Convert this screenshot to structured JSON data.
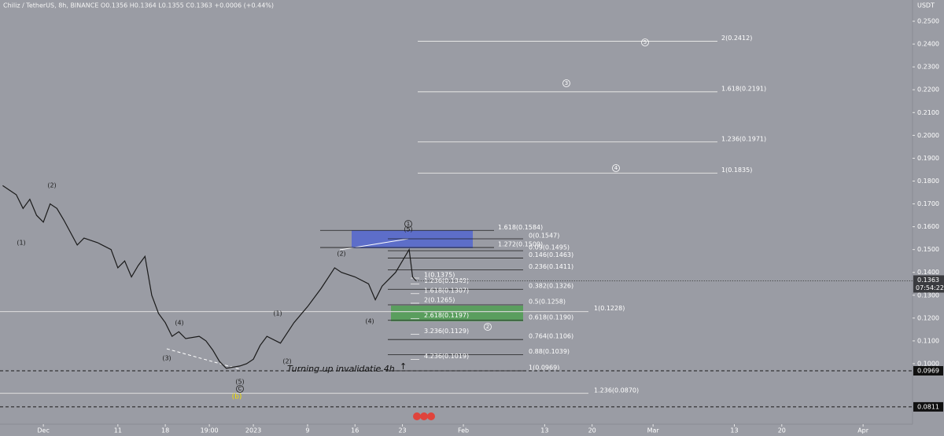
{
  "chart_data": {
    "type": "line",
    "header": "Chiliz / TetherUS, 8h, BINANCE  O0.1356  H0.1364  L0.1355  C0.1363  +0.0006 (+0.44%)",
    "y_unit": "USDT",
    "color": "#1a1a1a",
    "series": [
      {
        "name": "CHZUSDT",
        "x": [
          -6,
          -5,
          -4,
          -3,
          -2,
          -1,
          0,
          1,
          2,
          3,
          5,
          6,
          8,
          10,
          11,
          12,
          13,
          14,
          15,
          16,
          17,
          18,
          19,
          20,
          21,
          23,
          24,
          25,
          26,
          27,
          29,
          30,
          31,
          32,
          33,
          35,
          37,
          39,
          41,
          43,
          44,
          46,
          48,
          49,
          50,
          52,
          53,
          54,
          54.5,
          55
        ],
        "values": [
          0.178,
          0.176,
          0.174,
          0.168,
          0.172,
          0.165,
          0.162,
          0.17,
          0.168,
          0.163,
          0.152,
          0.155,
          0.153,
          0.15,
          0.142,
          0.145,
          0.138,
          0.143,
          0.147,
          0.13,
          0.122,
          0.118,
          0.112,
          0.114,
          0.111,
          0.112,
          0.11,
          0.106,
          0.101,
          0.098,
          0.099,
          0.1,
          0.102,
          0.108,
          0.112,
          0.109,
          0.118,
          0.125,
          0.133,
          0.142,
          0.14,
          0.138,
          0.135,
          0.128,
          0.134,
          0.14,
          0.145,
          0.15,
          0.138,
          0.1363
        ]
      }
    ],
    "xlim": [
      -6.4,
      128.3
    ],
    "xticks": [
      {
        "value": 0,
        "label": "Dec"
      },
      11,
      18,
      {
        "value": 24.5,
        "label": "19:00"
      },
      {
        "value": 31,
        "label": "2023"
      },
      {
        "value": 39,
        "label": "9"
      },
      {
        "value": 46,
        "label": "16"
      },
      {
        "value": 53,
        "label": "23"
      },
      {
        "value": 62,
        "label": "Feb"
      },
      {
        "value": 74,
        "label": "13"
      },
      {
        "value": 81,
        "label": "20"
      },
      {
        "value": 90,
        "label": "Mar"
      },
      {
        "value": 102,
        "label": "13"
      },
      {
        "value": 109,
        "label": "20"
      },
      {
        "value": 121,
        "label": "Apr"
      }
    ],
    "ylim": [
      0.0735,
      0.2593
    ],
    "yticks": [
      {
        "value": 0.1,
        "label": "0.1000"
      },
      {
        "value": 0.11,
        "label": "0.1100"
      },
      {
        "value": 0.12,
        "label": "0.1200"
      },
      {
        "value": 0.13,
        "label": "0.1300"
      },
      {
        "value": 0.14,
        "label": "0.1400"
      },
      {
        "value": 0.15,
        "label": "0.1500"
      },
      {
        "value": 0.16,
        "label": "0.1600"
      },
      {
        "value": 0.17,
        "label": "0.1700"
      },
      {
        "value": 0.18,
        "label": "0.1800"
      },
      {
        "value": 0.19,
        "label": "0.1900"
      },
      {
        "value": 0.2,
        "label": "0.2000"
      },
      {
        "value": 0.21,
        "label": "0.2100"
      },
      {
        "value": 0.22,
        "label": "0.2200"
      },
      {
        "value": 0.23,
        "label": "0.2300"
      },
      {
        "value": 0.24,
        "label": "0.2400"
      },
      {
        "value": 0.25,
        "label": "0.2500"
      }
    ],
    "fib_groups": [
      {
        "levels": [
          {
            "label": "2(0.2412)",
            "value": 0.2412
          },
          {
            "label": "1.618(0.2191)",
            "value": 0.2191
          },
          {
            "label": "1.236(0.1971)",
            "value": 0.1971
          },
          {
            "label": "1(0.1835)",
            "value": 0.1835
          }
        ]
      },
      {
        "levels": [
          {
            "label": "1.618(0.1584)",
            "value": 0.1584
          },
          {
            "label": "1.272(0.1509)",
            "value": 0.1509
          }
        ]
      },
      {
        "levels": [
          {
            "label": "0(0.1547)",
            "value": 0.1547
          },
          {
            "label": "0.09(0.1495)",
            "value": 0.1495
          },
          {
            "label": "0.146(0.1463)",
            "value": 0.1463
          },
          {
            "label": "0.236(0.1411)",
            "value": 0.1411
          },
          {
            "label": "0.382(0.1326)",
            "value": 0.1326
          },
          {
            "label": "0.5(0.1258)",
            "value": 0.1258
          },
          {
            "label": "0.618(0.1190)",
            "value": 0.119
          },
          {
            "label": "0.764(0.1106)",
            "value": 0.1106
          },
          {
            "label": "0.88(0.1039)",
            "value": 0.1039
          },
          {
            "label": "1(0.0969)",
            "value": 0.0969
          }
        ]
      },
      {
        "levels": [
          {
            "label": "1(0.1375)",
            "value": 0.1375
          },
          {
            "label": "1.236(0.1349)",
            "value": 0.1349
          },
          {
            "label": "1.618(0.1307)",
            "value": 0.1307
          },
          {
            "label": "2(0.1265)",
            "value": 0.1265
          },
          {
            "label": "2.618(0.1197)",
            "value": 0.1197
          },
          {
            "label": "3.236(0.1129)",
            "value": 0.1129
          },
          {
            "label": "4.236(0.1019)",
            "value": 0.1019
          }
        ]
      },
      {
        "levels": [
          {
            "label": "1(0.1228)",
            "value": 0.1228
          },
          {
            "label": "1.236(0.0870)",
            "value": 0.087
          }
        ]
      }
    ],
    "dashed_levels": [
      {
        "value": 0.0969,
        "label": "0.0969"
      },
      {
        "value": 0.0811,
        "label": "0.0811"
      }
    ],
    "last_price": {
      "value": 0.1363,
      "label": "0.1363",
      "countdown": "07:54:22"
    },
    "annotations": [
      {
        "text": "(1)"
      },
      {
        "text": "(2)"
      },
      {
        "text": "(3)"
      },
      {
        "text": "(4)"
      },
      {
        "text": "(5)"
      },
      {
        "text": "C"
      },
      {
        "text": "(b)"
      },
      {
        "text": "(1)"
      },
      {
        "text": "(2)"
      },
      {
        "text": "(2)"
      },
      {
        "text": "(4)"
      },
      {
        "text": "(5)"
      },
      {
        "text": "1"
      },
      {
        "text": "5"
      },
      {
        "text": "3"
      },
      {
        "text": "4"
      },
      {
        "text": "2"
      },
      {
        "text": "Turning up invalidatie 4h"
      },
      {
        "text": "↑"
      }
    ]
  }
}
